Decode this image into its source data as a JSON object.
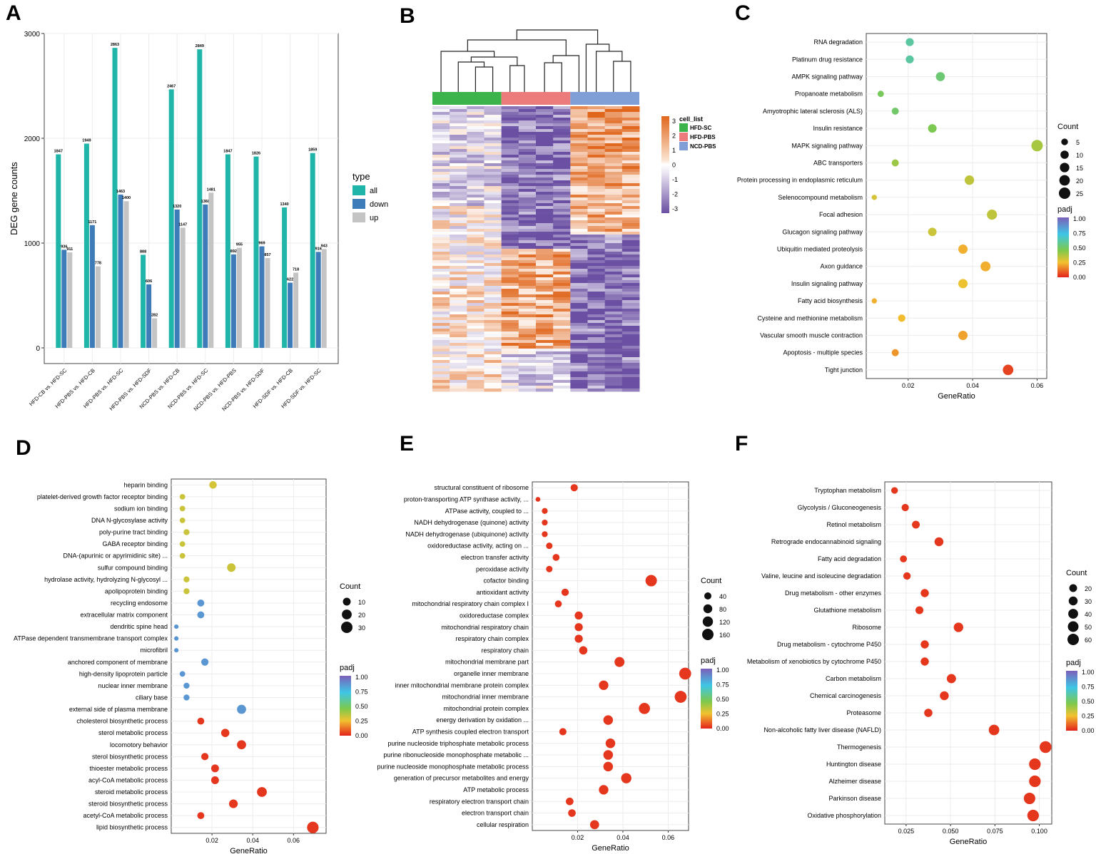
{
  "colors": {
    "all": "#1fb5a8",
    "down": "#3d7cb8",
    "up": "#c4c4c4",
    "panel_border": "#444444",
    "grid": "#ececec",
    "dot_red": "#e0271f",
    "dot_green": "#6fbd5a",
    "dot_blue": "#7b88c7"
  },
  "chart_data": [
    {
      "panel": "A",
      "type": "bar",
      "ylabel": "DEG gene counts",
      "xlabel": "",
      "ylim": [
        0,
        3000
      ],
      "yticks": [
        0,
        1000,
        2000,
        3000
      ],
      "categories": [
        "HFD-CB vs. HFD-SC",
        "HFD-PBS vs. HFD-CB",
        "HFD-PBS vs. HFD-SC",
        "HFD-PBS vs. HFD-SDF",
        "NCD-PBS vs. HFD-CB",
        "NCD-PBS vs. HFD-SC",
        "NCD-PBS vs. HFD-PBS",
        "NCD-PBS vs. HFD-SDF",
        "HFD-SDF vs. HFD-CB",
        "HFD-SDF vs. HFD-SC"
      ],
      "legend_title": "type",
      "series": [
        {
          "name": "all",
          "values": [
            1847,
            1949,
            2863,
            888,
            2467,
            2849,
            1847,
            1826,
            1340,
            1859
          ]
        },
        {
          "name": "down",
          "values": [
            936,
            1171,
            1463,
            606,
            1320,
            1368,
            892,
            969,
            622,
            916
          ]
        },
        {
          "name": "up",
          "values": [
            911,
            778,
            1400,
            282,
            1147,
            1481,
            955,
            857,
            718,
            943
          ]
        }
      ]
    },
    {
      "panel": "B",
      "type": "heatmap",
      "legend_title": "cell_list",
      "groups": [
        "HFD-SC",
        "HFD-PBS",
        "NCD-PBS"
      ],
      "group_colors": [
        "#3cb44b",
        "#ec7b7b",
        "#7f9fd6"
      ],
      "scale_ticks": [
        "3",
        "2",
        "1",
        "0",
        "-1",
        "-2",
        "-3"
      ],
      "columns_per_group": 4,
      "rows": 100
    },
    {
      "panel": "C",
      "type": "scatter",
      "xlabel": "GeneRatio",
      "xlim": [
        0.007,
        0.063
      ],
      "xticks": [
        0.02,
        0.04,
        0.06
      ],
      "size_legend_title": "Count",
      "size_ticks": [
        5,
        10,
        15,
        20,
        25
      ],
      "color_legend_title": "padj",
      "color_ticks": [
        "1.00",
        "0.75",
        "0.50",
        "0.25",
        "0.00"
      ],
      "terms": [
        "RNA degradation",
        "Platinum drug resistance",
        "AMPK signaling pathway",
        "Propanoate metabolism",
        "Amyotrophic lateral sclerosis (ALS)",
        "Insulin resistance",
        "MAPK signaling pathway",
        "ABC transporters",
        "Protein processing in endoplasmic reticulum",
        "Selenocompound metabolism",
        "Focal adhesion",
        "Glucagon signaling pathway",
        "Ubiquitin mediated proteolysis",
        "Axon guidance",
        "Insulin signaling pathway",
        "Fatty acid biosynthesis",
        "Cysteine and methionine metabolism",
        "Vascular smooth muscle contraction",
        "Apoptosis - multiple species",
        "Tight junction"
      ],
      "x": [
        0.0205,
        0.0205,
        0.03,
        0.0115,
        0.016,
        0.0275,
        0.06,
        0.016,
        0.039,
        0.0095,
        0.046,
        0.0275,
        0.037,
        0.044,
        0.037,
        0.0095,
        0.018,
        0.037,
        0.016,
        0.051
      ],
      "count": [
        9,
        9,
        13,
        4,
        6,
        11,
        25,
        6,
        15,
        2,
        18,
        11,
        14,
        17,
        14,
        2,
        7,
        14,
        6,
        20
      ],
      "padj": [
        0.6,
        0.6,
        0.52,
        0.48,
        0.5,
        0.46,
        0.38,
        0.4,
        0.34,
        0.3,
        0.34,
        0.32,
        0.22,
        0.22,
        0.26,
        0.22,
        0.24,
        0.2,
        0.18,
        0.05
      ]
    },
    {
      "panel": "D",
      "type": "scatter",
      "xlabel": "GeneRatio",
      "xlim": [
        0.0,
        0.076
      ],
      "xticks": [
        0.02,
        0.04,
        0.06
      ],
      "size_legend_title": "Count",
      "size_ticks": [
        10,
        20,
        30
      ],
      "color_legend_title": "padj",
      "color_ticks": [
        "1.00",
        "0.75",
        "0.50",
        "0.25",
        "0.00"
      ],
      "terms": [
        "heparin binding",
        "platelet-derived growth factor receptor binding",
        "sodium ion binding",
        "DNA N-glycosylase activity",
        "poly-purine tract binding",
        "GABA receptor binding",
        "DNA-(apurinic or apyrimidinic site) ...",
        "sulfur compound binding",
        "hydrolase activity, hydrolyzing N-glycosyl ...",
        "apolipoprotein binding",
        "recycling endosome",
        "extracellular matrix component",
        "dendritic spine head",
        "ATPase dependent transmembrane transport complex",
        "microfibril",
        "anchored component of membrane",
        "high-density lipoprotein particle",
        "nuclear inner membrane",
        "ciliary base",
        "external side of plasma membrane",
        "cholesterol biosynthetic process",
        "sterol metabolic process",
        "locomotory behavior",
        "sterol biosynthetic process",
        "thioester metabolic process",
        "acyl-CoA metabolic process",
        "steroid metabolic process",
        "steroid biosynthetic process",
        "acetyl-CoA metabolic process",
        "lipid biosynthetic process"
      ],
      "x": [
        0.0205,
        0.0055,
        0.0055,
        0.0055,
        0.0075,
        0.0055,
        0.0055,
        0.0295,
        0.0075,
        0.0075,
        0.0145,
        0.0145,
        0.0025,
        0.0025,
        0.0025,
        0.0165,
        0.0055,
        0.0075,
        0.0075,
        0.0345,
        0.0145,
        0.0265,
        0.0345,
        0.0165,
        0.0215,
        0.0215,
        0.0445,
        0.0305,
        0.0145,
        0.0695
      ],
      "count": [
        9,
        3,
        3,
        3,
        4,
        3,
        3,
        13,
        4,
        4,
        7,
        7,
        1,
        1,
        1,
        8,
        3,
        4,
        4,
        16,
        7,
        12,
        16,
        8,
        10,
        10,
        20,
        14,
        7,
        31
      ],
      "padj": [
        0.3,
        0.32,
        0.32,
        0.32,
        0.32,
        0.32,
        0.32,
        0.32,
        0.32,
        0.32,
        0.85,
        0.85,
        0.85,
        0.85,
        0.85,
        0.85,
        0.85,
        0.85,
        0.85,
        0.85,
        0.03,
        0.03,
        0.03,
        0.03,
        0.03,
        0.03,
        0.03,
        0.03,
        0.03,
        0.03
      ]
    },
    {
      "panel": "E",
      "type": "scatter",
      "xlabel": "GeneRatio",
      "xlim": [
        0.0,
        0.069
      ],
      "xticks": [
        0.02,
        0.04,
        0.06
      ],
      "size_legend_title": "Count",
      "size_ticks": [
        40,
        80,
        120,
        160
      ],
      "color_legend_title": "padj",
      "color_ticks": [
        "1.00",
        "0.75",
        "0.50",
        "0.25",
        "0.00"
      ],
      "terms": [
        "structural constituent of ribosome",
        "proton-transporting ATP synthase activity, ...",
        "ATPase activity, coupled to ...",
        "NADH dehydrogenase (quinone) activity",
        "NADH dehydrogenase (ubiquinone) activity",
        "oxidoreductase activity, acting on ...",
        "electron transfer activity",
        "peroxidase activity",
        "cofactor binding",
        "antioxidant activity",
        "mitochondrial respiratory chain complex I",
        "oxidoreductase complex",
        "mitochondrial respiratory chain",
        "respiratory chain complex",
        "respiratory chain",
        "mitochondrial membrane part",
        "organelle inner membrane",
        "inner mitochondrial membrane protein complex",
        "mitochondrial inner membrane",
        "mitochondrial protein complex",
        "energy derivation by oxidation ...",
        "ATP synthesis coupled electron transport",
        "purine nucleoside triphosphate metabolic process",
        "purine ribonucleoside monophosphate metabolic ...",
        "purine nucleoside monophosphate metabolic process",
        "generation of precursor metabolites and energy",
        "ATP metabolic process",
        "respiratory electron transport chain",
        "electron transport chain",
        "cellular respiration"
      ],
      "x": [
        0.0185,
        0.0025,
        0.0055,
        0.0055,
        0.0055,
        0.0075,
        0.0105,
        0.0075,
        0.0525,
        0.0145,
        0.0115,
        0.0205,
        0.0205,
        0.0205,
        0.0225,
        0.0385,
        0.0675,
        0.0315,
        0.0655,
        0.0495,
        0.0335,
        0.0135,
        0.0345,
        0.0335,
        0.0335,
        0.0415,
        0.0315,
        0.0165,
        0.0175,
        0.0275
      ],
      "count": [
        42,
        8,
        20,
        20,
        20,
        28,
        36,
        28,
        160,
        44,
        36,
        60,
        60,
        60,
        64,
        110,
        180,
        96,
        180,
        150,
        100,
        42,
        100,
        100,
        100,
        120,
        96,
        50,
        50,
        84
      ],
      "padj": [
        0.03,
        0.03,
        0.03,
        0.03,
        0.03,
        0.03,
        0.03,
        0.03,
        0.03,
        0.03,
        0.03,
        0.03,
        0.03,
        0.03,
        0.03,
        0.03,
        0.03,
        0.03,
        0.03,
        0.03,
        0.03,
        0.03,
        0.03,
        0.03,
        0.03,
        0.03,
        0.03,
        0.03,
        0.03,
        0.03
      ]
    },
    {
      "panel": "F",
      "type": "scatter",
      "xlabel": "GeneRatio",
      "xlim": [
        0.013,
        0.107
      ],
      "xticks": [
        0.025,
        0.05,
        0.075,
        0.1
      ],
      "xtick_labels": [
        "0.025",
        "0.050",
        "0.075",
        "0.100"
      ],
      "size_legend_title": "Count",
      "size_ticks": [
        20,
        30,
        40,
        50,
        60
      ],
      "color_legend_title": "padj",
      "color_ticks": [
        "1.00",
        "0.75",
        "0.50",
        "0.25",
        "0.00"
      ],
      "terms": [
        "Tryptophan metabolism",
        "Glycolysis / Gluconeogenesis",
        "Retinol metabolism",
        "Retrograde endocannabinoid signaling",
        "Fatty acid degradation",
        "Valine, leucine and isoleucine degradation",
        "Drug metabolism - other enzymes",
        "Glutathione metabolism",
        "Ribosome",
        "Drug metabolism - cytochrome P450",
        "Metabolism of xenobiotics by cytochrome P450",
        "Carbon metabolism",
        "Chemical carcinogenesis",
        "Proteasome",
        "Non-alcoholic fatty liver disease (NAFLD)",
        "Thermogenesis",
        "Huntington disease",
        "Alzheimer disease",
        "Parkinson disease",
        "Oxidative phosphorylation"
      ],
      "x": [
        0.0185,
        0.0245,
        0.0305,
        0.0435,
        0.0235,
        0.0255,
        0.0355,
        0.0325,
        0.0545,
        0.0355,
        0.0355,
        0.0505,
        0.0465,
        0.0375,
        0.0745,
        0.1035,
        0.0975,
        0.0975,
        0.0945,
        0.0965
      ],
      "count": [
        12,
        16,
        20,
        30,
        14,
        17,
        23,
        21,
        36,
        23,
        23,
        33,
        30,
        24,
        48,
        66,
        63,
        63,
        61,
        62
      ],
      "padj": [
        0.03,
        0.03,
        0.03,
        0.03,
        0.03,
        0.03,
        0.03,
        0.03,
        0.03,
        0.03,
        0.03,
        0.03,
        0.03,
        0.03,
        0.03,
        0.03,
        0.03,
        0.03,
        0.03,
        0.03
      ]
    }
  ]
}
